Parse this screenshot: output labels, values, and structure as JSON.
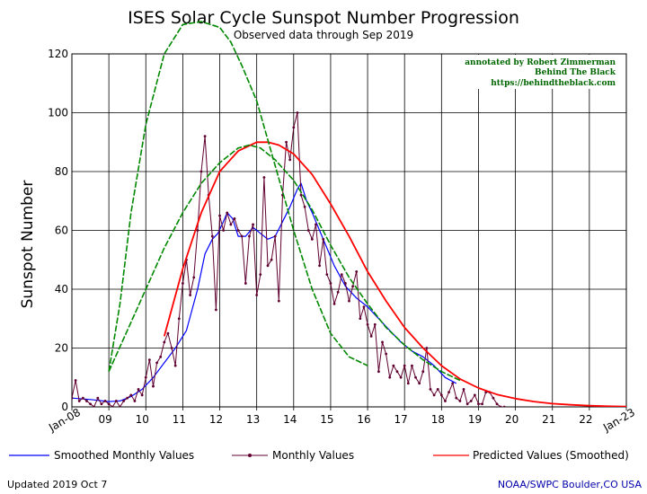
{
  "chart_data": {
    "type": "line",
    "title": "ISES Solar Cycle Sunspot Number Progression",
    "subtitle": "Observed data through Sep 2019",
    "ylabel": "Sunspot Number",
    "ylim": [
      0,
      120
    ],
    "yticks": [
      0,
      20,
      40,
      60,
      80,
      100,
      120
    ],
    "xlim": [
      2008.0,
      2023.0
    ],
    "xticks": [
      {
        "x": 2008,
        "label": "Jan-08"
      },
      {
        "x": 2009,
        "label": "09"
      },
      {
        "x": 2010,
        "label": "10"
      },
      {
        "x": 2011,
        "label": "11"
      },
      {
        "x": 2012,
        "label": "12"
      },
      {
        "x": 2013,
        "label": "13"
      },
      {
        "x": 2014,
        "label": "14"
      },
      {
        "x": 2015,
        "label": "15"
      },
      {
        "x": 2016,
        "label": "16"
      },
      {
        "x": 2017,
        "label": "17"
      },
      {
        "x": 2018,
        "label": "18"
      },
      {
        "x": 2019,
        "label": "19"
      },
      {
        "x": 2020,
        "label": "20"
      },
      {
        "x": 2021,
        "label": "21"
      },
      {
        "x": 2022,
        "label": "22"
      },
      {
        "x": 2023,
        "label": "Jan-23"
      }
    ],
    "grid": true,
    "series": [
      {
        "name": "Smoothed Monthly Values",
        "color": "#0000ff",
        "x": [
          2008.0,
          2008.5,
          2009.0,
          2009.3,
          2009.6,
          2009.9,
          2010.2,
          2010.5,
          2010.8,
          2011.1,
          2011.4,
          2011.6,
          2011.8,
          2011.95,
          2012.1,
          2012.2,
          2012.35,
          2012.5,
          2012.7,
          2012.9,
          2013.1,
          2013.3,
          2013.5,
          2013.7,
          2013.9,
          2014.1,
          2014.2,
          2014.35,
          2014.5,
          2014.7,
          2014.9,
          2015.1,
          2015.4,
          2015.7,
          2016.0,
          2016.3,
          2016.6,
          2016.9,
          2017.2,
          2017.5,
          2017.8,
          2018.1,
          2018.4
        ],
        "y": [
          3,
          2.5,
          1.8,
          2,
          3.5,
          6,
          10,
          15,
          20,
          26,
          40,
          52,
          57,
          59,
          63,
          66,
          64,
          58,
          58,
          61,
          59,
          57,
          58,
          63,
          68,
          74,
          76,
          70,
          66,
          60,
          54,
          48,
          41,
          37,
          34,
          30,
          26,
          22,
          19,
          17,
          14,
          10,
          8
        ]
      },
      {
        "name": "Monthly Values",
        "color": "#600030",
        "x": [
          2008.0,
          2008.1,
          2008.2,
          2008.3,
          2008.4,
          2008.5,
          2008.6,
          2008.7,
          2008.8,
          2008.9,
          2009.0,
          2009.1,
          2009.2,
          2009.3,
          2009.4,
          2009.5,
          2009.6,
          2009.7,
          2009.8,
          2009.9,
          2010.0,
          2010.1,
          2010.2,
          2010.3,
          2010.4,
          2010.5,
          2010.6,
          2010.7,
          2010.8,
          2010.9,
          2011.0,
          2011.1,
          2011.2,
          2011.3,
          2011.4,
          2011.5,
          2011.6,
          2011.7,
          2011.8,
          2011.9,
          2012.0,
          2012.1,
          2012.2,
          2012.3,
          2012.4,
          2012.5,
          2012.6,
          2012.7,
          2012.8,
          2012.9,
          2013.0,
          2013.1,
          2013.2,
          2013.3,
          2013.4,
          2013.5,
          2013.6,
          2013.7,
          2013.8,
          2013.9,
          2014.0,
          2014.1,
          2014.2,
          2014.3,
          2014.4,
          2014.5,
          2014.6,
          2014.7,
          2014.8,
          2014.9,
          2015.0,
          2015.1,
          2015.2,
          2015.3,
          2015.4,
          2015.5,
          2015.6,
          2015.7,
          2015.8,
          2015.9,
          2016.0,
          2016.1,
          2016.2,
          2016.3,
          2016.4,
          2016.5,
          2016.6,
          2016.7,
          2016.8,
          2016.9,
          2017.0,
          2017.1,
          2017.2,
          2017.3,
          2017.4,
          2017.5,
          2017.6,
          2017.7,
          2017.8,
          2017.9,
          2018.0,
          2018.1,
          2018.2,
          2018.3,
          2018.4,
          2018.5,
          2018.6,
          2018.7,
          2018.8,
          2018.9,
          2019.0,
          2019.1,
          2019.2,
          2019.3,
          2019.4,
          2019.5,
          2019.6,
          2019.7
        ],
        "y": [
          3,
          9,
          2,
          3,
          2,
          1,
          0,
          3,
          1,
          2,
          1,
          0,
          2,
          0,
          2,
          3,
          4,
          2,
          6,
          4,
          10,
          16,
          7,
          15,
          17,
          22,
          25,
          20,
          14,
          30,
          42,
          50,
          38,
          44,
          60,
          80,
          92,
          72,
          58,
          33,
          65,
          60,
          66,
          62,
          64,
          60,
          58,
          42,
          58,
          62,
          38,
          45,
          78,
          48,
          50,
          58,
          36,
          72,
          90,
          84,
          95,
          100,
          72,
          68,
          60,
          57,
          62,
          48,
          57,
          45,
          42,
          35,
          39,
          45,
          42,
          36,
          41,
          46,
          30,
          34,
          28,
          24,
          28,
          12,
          22,
          18,
          10,
          14,
          12,
          10,
          14,
          8,
          14,
          10,
          8,
          12,
          20,
          6,
          4,
          6,
          4,
          2,
          5,
          8,
          3,
          2,
          6,
          1,
          2,
          4,
          1,
          1,
          5,
          5,
          3,
          1,
          0,
          0
        ]
      },
      {
        "name": "Predicted Values (Smoothed)",
        "color": "#ff0000",
        "x": [
          2010.5,
          2011.0,
          2011.5,
          2012.0,
          2012.5,
          2013.0,
          2013.3,
          2013.6,
          2014.0,
          2014.5,
          2015.0,
          2015.5,
          2016.0,
          2016.5,
          2017.0,
          2017.5,
          2018.0,
          2018.5,
          2019.0,
          2019.5,
          2020.0,
          2020.5,
          2021.0,
          2021.5,
          2022.0,
          2022.5,
          2023.0
        ],
        "y": [
          24,
          47,
          66,
          80,
          87,
          90,
          90,
          89,
          86,
          79,
          69,
          58,
          46,
          36,
          27,
          20,
          14,
          9.5,
          6.4,
          4.2,
          2.8,
          1.8,
          1.1,
          0.7,
          0.4,
          0.2,
          0.1
        ]
      },
      {
        "color": "#008800",
        "x": [
          2009.0,
          2009.3,
          2009.6,
          2010.0,
          2010.5,
          2011.0,
          2011.5,
          2012.0,
          2012.3,
          2012.6,
          2013.0,
          2013.5,
          2014.0,
          2014.5,
          2015.0,
          2015.5,
          2016.0
        ],
        "y": [
          12,
          35,
          66,
          96,
          120,
          130,
          131,
          129,
          124,
          116,
          104,
          82,
          60,
          40,
          25,
          17,
          14
        ]
      },
      {
        "color": "#008800",
        "x": [
          2009.0,
          2009.5,
          2010.0,
          2010.5,
          2011.0,
          2011.5,
          2012.0,
          2012.5,
          2012.8,
          2013.1,
          2013.5,
          2014.0,
          2014.5,
          2015.0,
          2015.5,
          2016.0,
          2016.5,
          2017.0,
          2017.5,
          2018.0,
          2018.5
        ],
        "y": [
          12,
          26,
          40,
          54,
          66,
          76,
          83,
          88,
          89,
          88,
          84,
          77,
          67,
          55,
          44,
          35,
          27,
          21,
          16,
          12,
          9
        ]
      }
    ],
    "annotation": {
      "line1": "annotated by Robert Zimmerman",
      "line2": "Behind The Black",
      "line3": "https://behindtheblack.com"
    },
    "legend": [
      {
        "label": "Smoothed Monthly Values",
        "color": "#0000ff"
      },
      {
        "label": "Monthly Values",
        "color": "#600030"
      },
      {
        "label": "Predicted Values (Smoothed)",
        "color": "#ff0000"
      }
    ],
    "footer_left": "Updated 2019 Oct  7",
    "footer_right": "NOAA/SWPC Boulder,CO USA"
  }
}
